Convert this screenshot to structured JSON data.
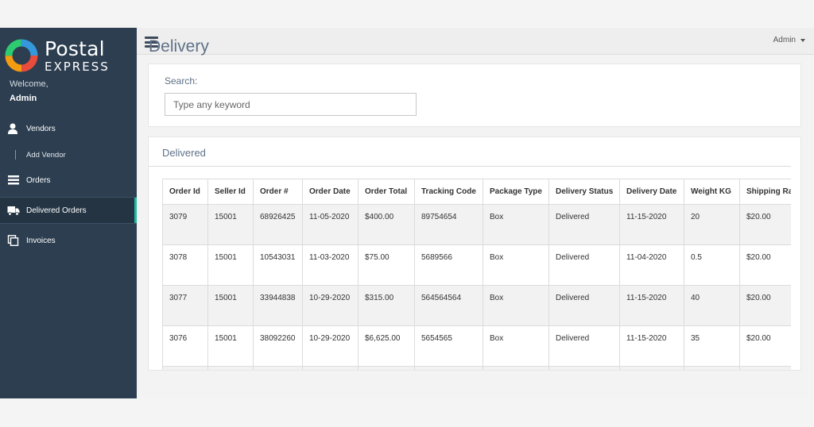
{
  "brand": {
    "title": "Postal",
    "subtitle": "EXPRESS"
  },
  "sidebar": {
    "welcome": "Welcome,",
    "user": "Admin",
    "items": [
      {
        "label": "Vendors",
        "icon": "user-icon"
      },
      {
        "label": "Add Vendor",
        "icon": ""
      },
      {
        "label": "Orders",
        "icon": "list-icon"
      },
      {
        "label": "Delivered Orders",
        "icon": "truck-icon"
      },
      {
        "label": "Invoices",
        "icon": "copy-icon"
      }
    ]
  },
  "topbar": {
    "user_menu": "Admin"
  },
  "page": {
    "title": "Delivery"
  },
  "search": {
    "label": "Search:",
    "placeholder": "Type any keyword",
    "value": ""
  },
  "table": {
    "heading": "Delivered",
    "columns": [
      "Order Id",
      "Seller Id",
      "Order #",
      "Order Date",
      "Order Total",
      "Tracking Code",
      "Package Type",
      "Delivery Status",
      "Delivery Date",
      "Weight KG",
      "Shipping Rate"
    ],
    "rows": [
      [
        "3079",
        "15001",
        "68926425",
        "11-05-2020",
        "$400.00",
        "89754654",
        "Box",
        "Delivered",
        "11-15-2020",
        "20",
        "$20.00"
      ],
      [
        "3078",
        "15001",
        "10543031",
        "11-03-2020",
        "$75.00",
        "5689566",
        "Box",
        "Delivered",
        "11-04-2020",
        "0.5",
        "$20.00"
      ],
      [
        "3077",
        "15001",
        "33944838",
        "10-29-2020",
        "$315.00",
        "564564564",
        "Box",
        "Delivered",
        "11-15-2020",
        "40",
        "$20.00"
      ],
      [
        "3076",
        "15001",
        "38092260",
        "10-29-2020",
        "$6,625.00",
        "5654565",
        "Box",
        "Delivered",
        "11-15-2020",
        "35",
        "$20.00"
      ]
    ]
  },
  "colors": {
    "sidebar": "#2c3e50",
    "accent": "#1abc9c",
    "title": "#5e7188"
  }
}
